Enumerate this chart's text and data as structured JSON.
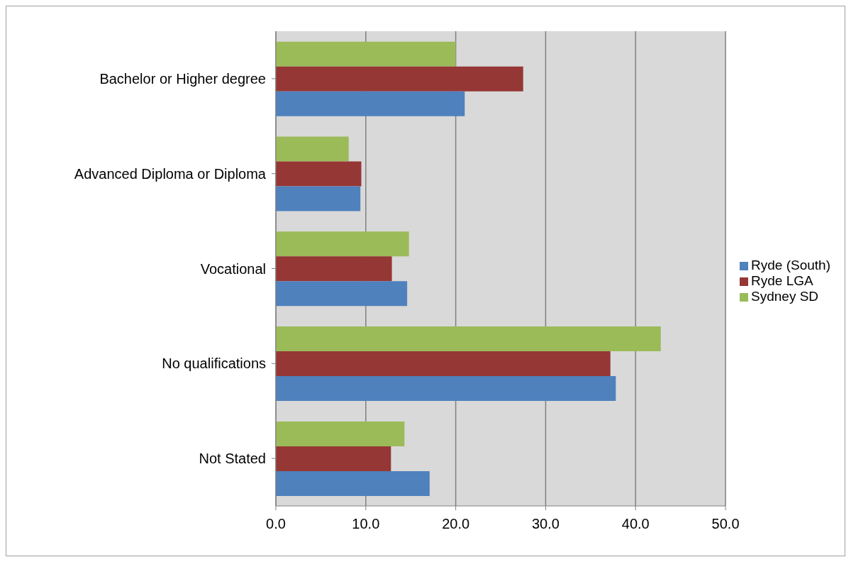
{
  "chart_data": {
    "type": "bar",
    "orientation": "horizontal",
    "categories": [
      "Bachelor or Higher degree",
      "Advanced Diploma or Diploma",
      "Vocational",
      "No qualifications",
      "Not Stated"
    ],
    "series": [
      {
        "name": "Sydney SD",
        "color": "#9bbb59",
        "values": [
          20.0,
          8.1,
          14.8,
          42.8,
          14.3
        ]
      },
      {
        "name": "Ryde LGA",
        "color": "#953735",
        "values": [
          27.5,
          9.5,
          12.9,
          37.2,
          12.8
        ]
      },
      {
        "name": "Ryde (South)",
        "color": "#4f81bd",
        "values": [
          21.0,
          9.4,
          14.6,
          37.8,
          17.1
        ]
      }
    ],
    "xlim": [
      0,
      50
    ],
    "xticks": [
      {
        "value": 0,
        "label": "0.0"
      },
      {
        "value": 10,
        "label": "10.0"
      },
      {
        "value": 20,
        "label": "20.0"
      },
      {
        "value": 30,
        "label": "30.0"
      },
      {
        "value": 40,
        "label": "40.0"
      },
      {
        "value": 50,
        "label": "50.0"
      }
    ],
    "grid": "x",
    "legend": "right"
  }
}
